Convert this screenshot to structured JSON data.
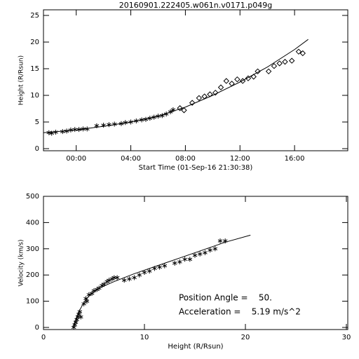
{
  "chart_data": [
    {
      "type": "scatter",
      "title": "20160901.222405.w061n.v0171.p049g",
      "x_label": "Start Time (01-Sep-16 21:30:38)",
      "y_label": "Height (R/Rsun)",
      "xlim": [
        -2.4,
        19.9
      ],
      "ylim": [
        0,
        25
      ],
      "xticks": [
        {
          "value": 0,
          "label": "00:00"
        },
        {
          "value": 4,
          "label": "04:00"
        },
        {
          "value": 8,
          "label": "08:00"
        },
        {
          "value": 12,
          "label": "12:00"
        },
        {
          "value": 16,
          "label": "16:00"
        }
      ],
      "yticks": [
        0,
        5,
        10,
        15,
        20,
        25
      ],
      "series": [
        {
          "marker": "asterisk",
          "color": "#000000",
          "x": [
            -2.0,
            -1.8,
            -1.5,
            -1.0,
            -0.7,
            -0.4,
            -0.1,
            0.2,
            0.5,
            0.8,
            1.5,
            2.0,
            2.4,
            2.8,
            3.3,
            3.6,
            4.0,
            4.4,
            4.8,
            5.1,
            5.4,
            5.7,
            6.0,
            6.3,
            6.6,
            6.9,
            7.1
          ],
          "values": [
            3.0,
            2.9,
            3.1,
            3.2,
            3.3,
            3.5,
            3.6,
            3.6,
            3.7,
            3.7,
            4.3,
            4.4,
            4.5,
            4.6,
            4.7,
            4.9,
            5.0,
            5.2,
            5.4,
            5.5,
            5.7,
            5.9,
            6.1,
            6.2,
            6.5,
            6.9,
            7.3
          ]
        },
        {
          "marker": "diamond",
          "color": "#000000",
          "x": [
            7.6,
            7.9,
            8.5,
            9.0,
            9.4,
            9.8,
            10.2,
            10.6,
            11.0,
            11.4,
            11.8,
            12.2,
            12.6,
            13.0,
            13.3,
            14.1,
            14.5,
            14.9,
            15.3,
            15.8,
            16.3,
            16.6
          ],
          "values": [
            7.6,
            7.2,
            8.6,
            9.5,
            9.8,
            10.2,
            10.5,
            11.5,
            12.7,
            12.2,
            13.0,
            12.7,
            13.2,
            13.5,
            14.5,
            14.5,
            15.5,
            16.0,
            16.3,
            16.5,
            18.2,
            17.9
          ]
        },
        {
          "marker": "line",
          "color": "#000000",
          "x": [
            -2.4,
            0,
            2,
            4,
            6,
            8,
            10,
            12,
            14,
            16,
            17
          ],
          "values": [
            3.0,
            3.5,
            4.2,
            5.0,
            6.1,
            7.8,
            10.0,
            12.5,
            15.3,
            18.6,
            20.5
          ]
        }
      ]
    },
    {
      "type": "scatter",
      "x_label": "Height (R/Rsun)",
      "y_label": "Velocity (km/s)",
      "xlim": [
        0,
        30
      ],
      "ylim": [
        0,
        500
      ],
      "xticks": [
        0,
        10,
        20,
        30
      ],
      "yticks": [
        0,
        100,
        200,
        300,
        400,
        500
      ],
      "annotations": [
        "Position Angle =    50.",
        "Acceleration =    5.19 m/s^2"
      ],
      "series": [
        {
          "marker": "asterisk",
          "color": "#000000",
          "x": [
            3.0,
            3.1,
            3.2,
            3.3,
            3.4,
            3.5,
            3.6,
            3.7,
            4.0,
            4.2,
            4.3,
            4.5,
            4.8,
            5.0,
            5.3,
            5.5,
            5.8,
            6.0,
            6.3,
            6.5,
            6.8,
            7.0,
            7.3,
            8.0,
            8.5,
            9.0,
            9.5,
            10.0,
            10.5,
            11.0,
            11.5,
            12.0,
            13.0,
            13.5,
            14.0,
            14.5,
            15.0,
            15.5,
            16.0,
            16.5,
            17.0,
            17.5,
            18.0
          ],
          "values": [
            0,
            10,
            20,
            30,
            40,
            50,
            60,
            40,
            90,
            110,
            100,
            125,
            130,
            140,
            145,
            150,
            160,
            165,
            175,
            180,
            185,
            190,
            190,
            180,
            185,
            190,
            200,
            210,
            215,
            225,
            230,
            235,
            245,
            250,
            260,
            260,
            275,
            280,
            285,
            295,
            300,
            330,
            330
          ]
        },
        {
          "marker": "line",
          "color": "#000000",
          "x": [
            2.9,
            3.5,
            4.0,
            4.5,
            5.5,
            7,
            9,
            12,
            15,
            18,
            20.5
          ],
          "values": [
            0,
            60,
            95,
            120,
            150,
            175,
            205,
            245,
            285,
            325,
            352
          ]
        }
      ]
    }
  ]
}
